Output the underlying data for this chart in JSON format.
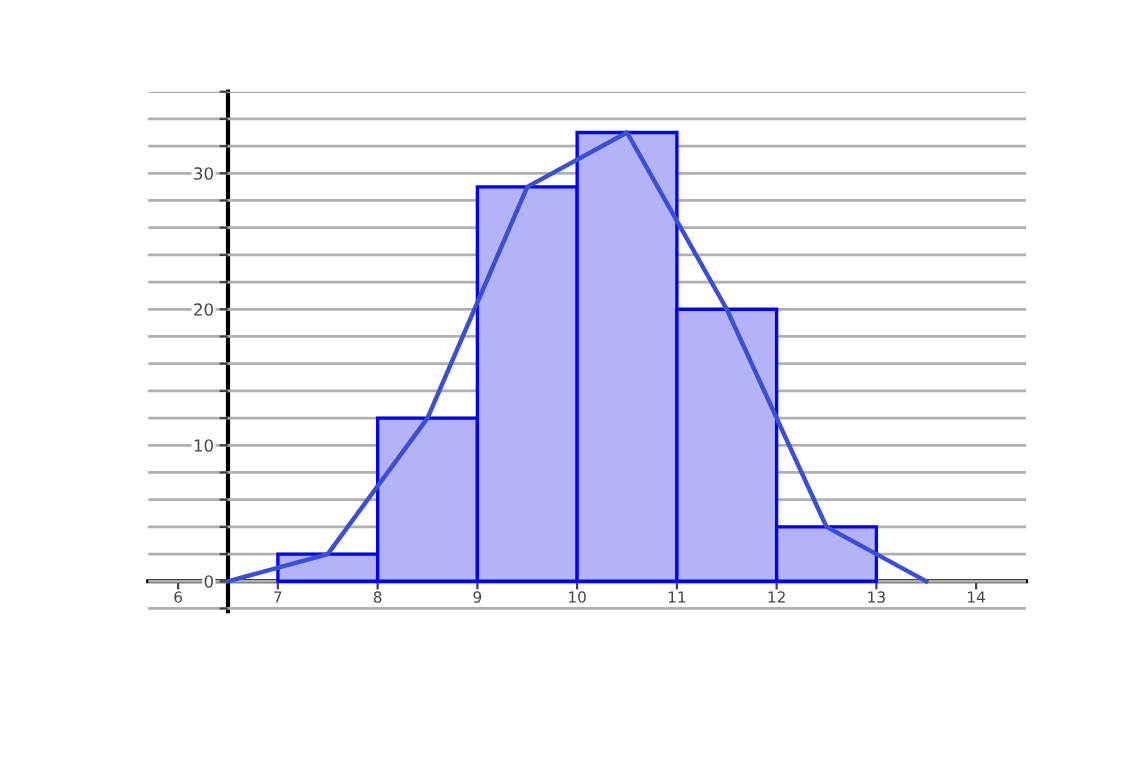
{
  "chart_data": {
    "type": "histogram",
    "bins": [
      7,
      8,
      9,
      10,
      11,
      12,
      13
    ],
    "values": [
      2,
      12,
      29,
      33,
      20,
      4
    ],
    "color": "#b3b3f9",
    "series": [
      {
        "type": "line",
        "x": [
          6.5,
          7.5,
          8.5,
          9.5,
          10.5,
          11.5,
          12.5,
          13.5
        ],
        "values": [
          0,
          2,
          12,
          29,
          33,
          20,
          4,
          0
        ],
        "color": "#3b4fd6"
      }
    ],
    "xlim": [
      5.7,
      14.5
    ],
    "ylim": [
      -2.2,
      36
    ],
    "xticks": [
      6,
      7,
      8,
      9,
      10,
      11,
      12,
      13,
      14
    ],
    "yticks": [
      {
        "value": -2,
        "label": null
      },
      0,
      {
        "value": 2,
        "label": null
      },
      {
        "value": 4,
        "label": null
      },
      {
        "value": 6,
        "label": null
      },
      {
        "value": 8,
        "label": null
      },
      10,
      {
        "value": 12,
        "label": null
      },
      {
        "value": 14,
        "label": null
      },
      {
        "value": 16,
        "label": null
      },
      {
        "value": 18,
        "label": null
      },
      20,
      {
        "value": 22,
        "label": null
      },
      {
        "value": 24,
        "label": null
      },
      {
        "value": 26,
        "label": null
      },
      {
        "value": 28,
        "label": null
      },
      30,
      {
        "value": 32,
        "label": null
      },
      {
        "value": 34,
        "label": null
      },
      {
        "value": 36,
        "label": null
      }
    ],
    "grid": "y"
  }
}
